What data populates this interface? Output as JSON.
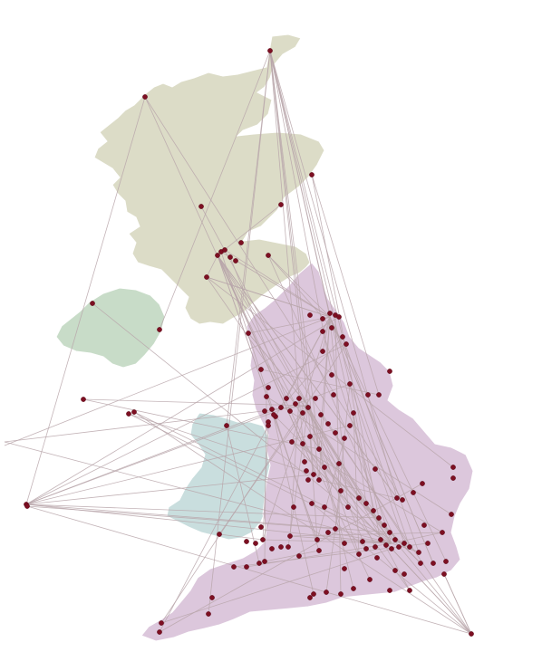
{
  "map": {
    "regions": [
      {
        "key": "scotland",
        "color": "#dcdcc7"
      },
      {
        "key": "northern-ireland",
        "color": "#c8dcc8"
      },
      {
        "key": "wales",
        "color": "#c9dede"
      },
      {
        "key": "england",
        "color": "#dcc7dc"
      }
    ],
    "link_color": "#b9a6aa",
    "point_color": "#7d0f22",
    "link_count": 140,
    "point_count": 150
  }
}
